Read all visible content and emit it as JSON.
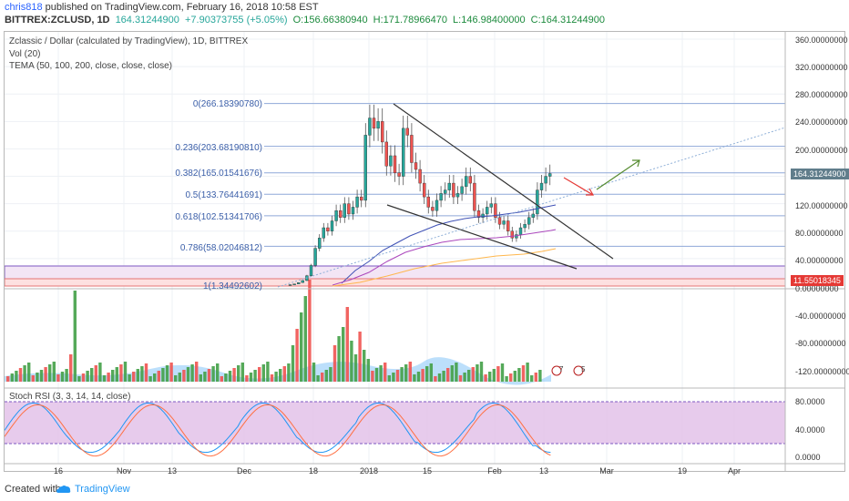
{
  "header": {
    "line1": {
      "author": "chris818",
      "text": "published on TradingView.com, February 16, 2018 10:58 EST"
    },
    "line2": {
      "symbol": "BITTREX:ZCLUSD, 1D",
      "last": "164.31244900",
      "change": "+7.90373755 (+5.05%)",
      "open": "O:156.66380940",
      "high": "H:171.78966470",
      "low": "L:146.98400000",
      "close": "C:164.31244900"
    }
  },
  "legend": {
    "title": "Zclassic / Dollar (calculated by TradingView), 1D, BITTREX",
    "vol": "Vol (20)",
    "tema": "TEMA (50, 100, 200, close, close, close)",
    "stoch": "Stoch RSI (3, 3, 14, 14, close)"
  },
  "fib_levels": [
    {
      "label": "0(266.18390780)",
      "value": 266.1839
    },
    {
      "label": "0.236(203.68190810)",
      "value": 203.6819
    },
    {
      "label": "0.382(165.01541676)",
      "value": 165.0154
    },
    {
      "label": "0.5(133.76441691)",
      "value": 133.7644
    },
    {
      "label": "0.618(102.51341706)",
      "value": 102.5134
    },
    {
      "label": "0.786(58.02046812)",
      "value": 58.0205
    },
    {
      "label": "1(1.34492602)",
      "value": 1.3449
    }
  ],
  "price_axis": [
    "360.00000000",
    "320.00000000",
    "280.00000000",
    "240.00000000",
    "200.00000000",
    "160.00000000",
    "120.00000000",
    "80.00000000",
    "40.00000000",
    "0.00000000",
    "-40.00000000",
    "-80.00000000",
    "-120.00000000"
  ],
  "price_badges": [
    {
      "text": "164.31244900",
      "color": "#607d8b"
    },
    {
      "text": "11.55018345",
      "color": "#e53935"
    }
  ],
  "rsi_axis": [
    "80.0000",
    "40.0000",
    "0.0000"
  ],
  "x_axis": [
    "16",
    "Nov",
    "13",
    "Dec",
    "18",
    "2018",
    "15",
    "Feb",
    "13",
    "Mar",
    "19",
    "Apr"
  ],
  "event_badges": [
    {
      "count": "7"
    },
    {
      "count": "5"
    }
  ],
  "footer": {
    "created": "Created with",
    "brand": "TradingView"
  },
  "colors": {
    "up": "#26a69a",
    "down": "#ef5350",
    "fib": "#8fa8d8",
    "rsi_fill": "#e1bee7",
    "tema50": "#3f51b5",
    "tema100": "#ab47bc",
    "tema200": "#ffb74d"
  }
}
